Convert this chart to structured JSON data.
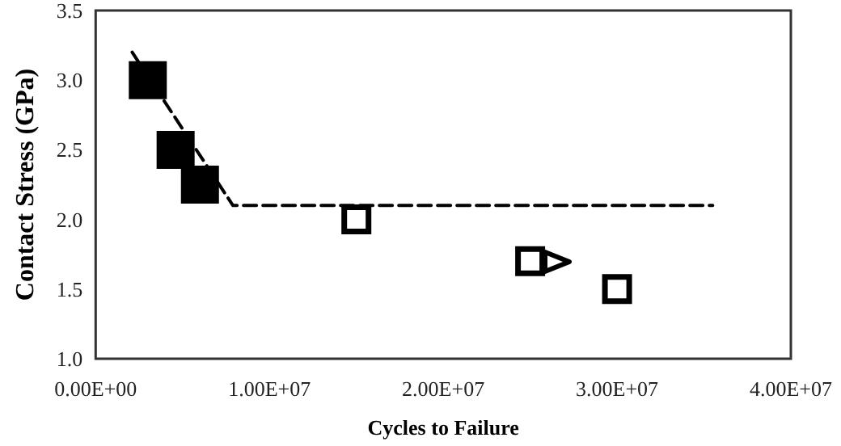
{
  "chart_data": {
    "type": "scatter",
    "xlabel": "Cycles to Failure",
    "ylabel": "Contact Stress (GPa)",
    "xlim": [
      0,
      40000000
    ],
    "xticks": [
      {
        "value": 0,
        "label": "0.00E+00"
      },
      {
        "value": 10000000,
        "label": "1.00E+07"
      },
      {
        "value": 20000000,
        "label": "2.00E+07"
      },
      {
        "value": 30000000,
        "label": "3.00E+07"
      },
      {
        "value": 40000000,
        "label": "4.00E+07"
      }
    ],
    "ylim": [
      1.0,
      3.5
    ],
    "yticks": [
      {
        "value": 1,
        "label": "1.0"
      },
      {
        "value": 1.5,
        "label": "1.5"
      },
      {
        "value": 2,
        "label": "2.0"
      },
      {
        "value": 2.5,
        "label": "2.5"
      },
      {
        "value": 3,
        "label": "3.0"
      },
      {
        "value": 3.5,
        "label": "3.5"
      }
    ],
    "grid": false,
    "marker": "square",
    "series": [
      {
        "type": "line",
        "color": "#000000",
        "line_style": "dashed",
        "marker": "none",
        "x": [
          2100000,
          7900000,
          35500000
        ],
        "values": [
          3.2,
          2.1,
          2.1
        ]
      },
      {
        "color": "#000000",
        "x": [
          3000000,
          4600000,
          6000000
        ],
        "values": [
          3.0,
          2.5,
          2.25
        ]
      },
      {
        "color": "#ffffff",
        "x": [
          15000000,
          25000000,
          30000000
        ],
        "values": [
          2.0,
          1.7,
          1.5
        ]
      }
    ]
  }
}
